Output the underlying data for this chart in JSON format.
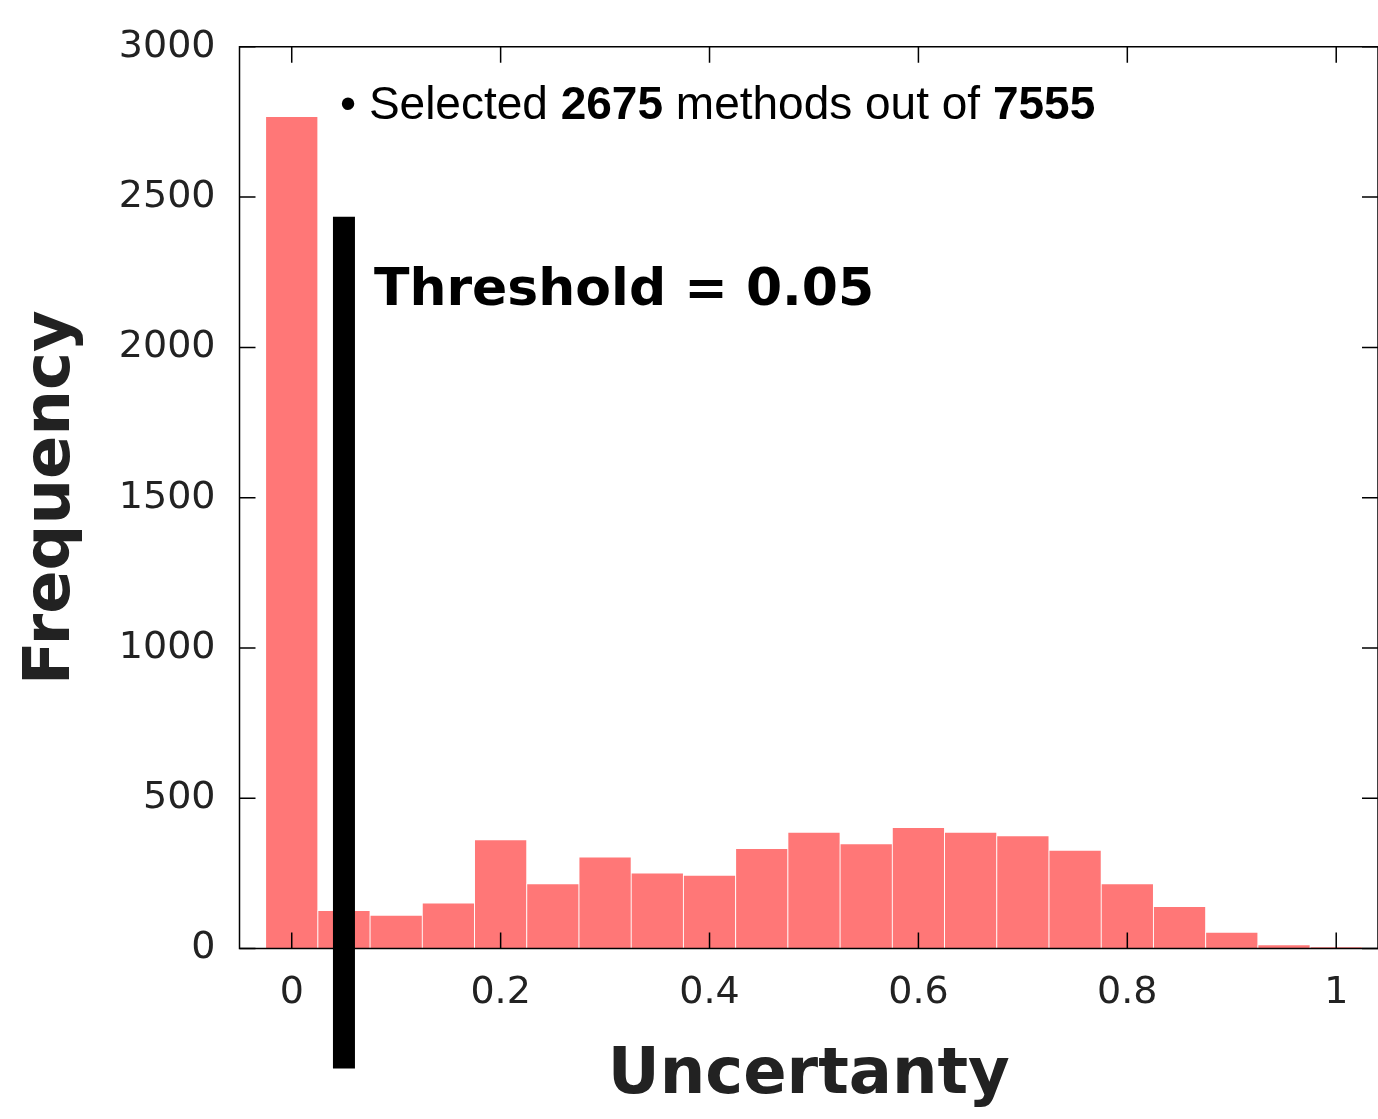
{
  "chart_data": {
    "type": "histogram",
    "xlabel": "Uncertanty",
    "ylabel": "Frequency",
    "bins": [
      -0.025,
      0.025,
      0.075,
      0.125,
      0.175,
      0.225,
      0.275,
      0.325,
      0.375,
      0.425,
      0.475,
      0.525,
      0.575,
      0.625,
      0.675,
      0.725,
      0.775,
      0.825,
      0.875,
      0.925,
      0.975,
      1.025
    ],
    "values": [
      2768,
      127,
      111,
      152,
      362,
      216,
      305,
      251,
      244,
      333,
      387,
      349,
      403,
      387,
      375,
      327,
      216,
      140,
      54,
      13,
      6
    ],
    "color": "#ff7777",
    "xlim": [
      -0.05,
      1.04
    ],
    "xticks": [
      {
        "value": 0,
        "label": "0"
      },
      0.2,
      0.4,
      0.6,
      0.8,
      {
        "value": 1,
        "label": "1"
      }
    ],
    "ylim": [
      0,
      3000
    ],
    "yticks": [
      0,
      500,
      1000,
      1500,
      2000,
      2500,
      3000
    ],
    "grid": false,
    "legend": false,
    "ref_lines": [
      {
        "axis": "x",
        "value": 0.05,
        "label": "Threshold = 0.05",
        "color": "#000000"
      }
    ],
    "annotations": [
      "• Selected 2675 methods out of 7555"
    ]
  }
}
